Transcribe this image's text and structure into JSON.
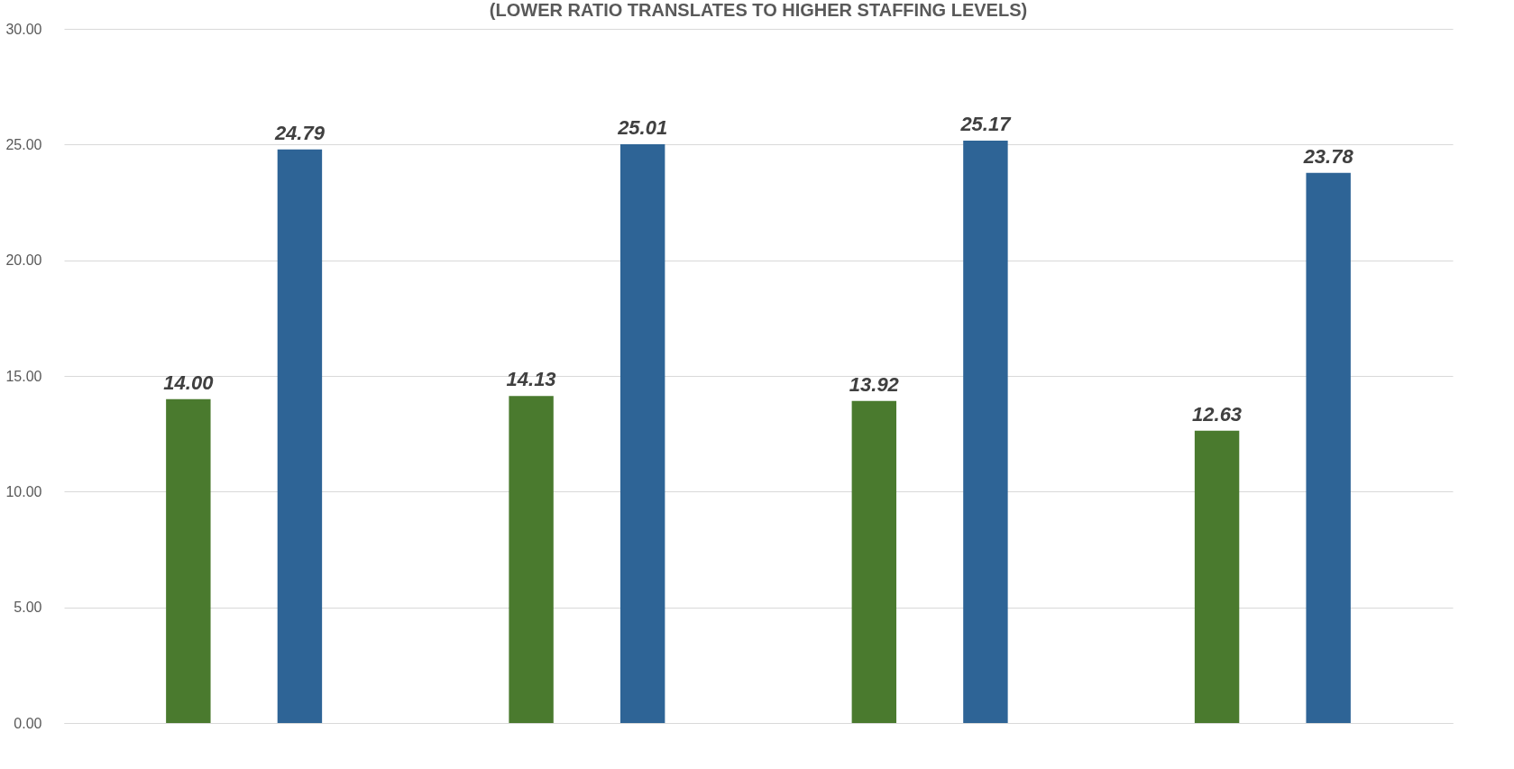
{
  "chart_data": {
    "type": "bar",
    "subtitle": "(LOWER RATIO TRANSLATES TO HIGHER STAFFING LEVELS)",
    "categories": [
      null,
      null,
      null,
      null
    ],
    "series": [
      {
        "color": "#4a7a2e",
        "values": [
          14.0,
          14.13,
          13.92,
          12.63
        ],
        "value_labels": [
          "14.00",
          "14.13",
          "13.92",
          "12.63"
        ]
      },
      {
        "color": "#2e6496",
        "values": [
          24.79,
          25.01,
          25.17,
          23.78
        ],
        "value_labels": [
          "24.79",
          "25.01",
          "25.17",
          "23.78"
        ]
      }
    ],
    "ylim": [
      0,
      30
    ],
    "yticks": [
      {
        "value": 0,
        "label": "0.00"
      },
      {
        "value": 5,
        "label": "5.00"
      },
      {
        "value": 10,
        "label": "10.00"
      },
      {
        "value": 15,
        "label": "15.00"
      },
      {
        "value": 20,
        "label": "20.00"
      },
      {
        "value": 25,
        "label": "25.00"
      },
      {
        "value": 30,
        "label": "30.00"
      }
    ],
    "grid": "y",
    "legend": false,
    "tick_labels": "y"
  }
}
